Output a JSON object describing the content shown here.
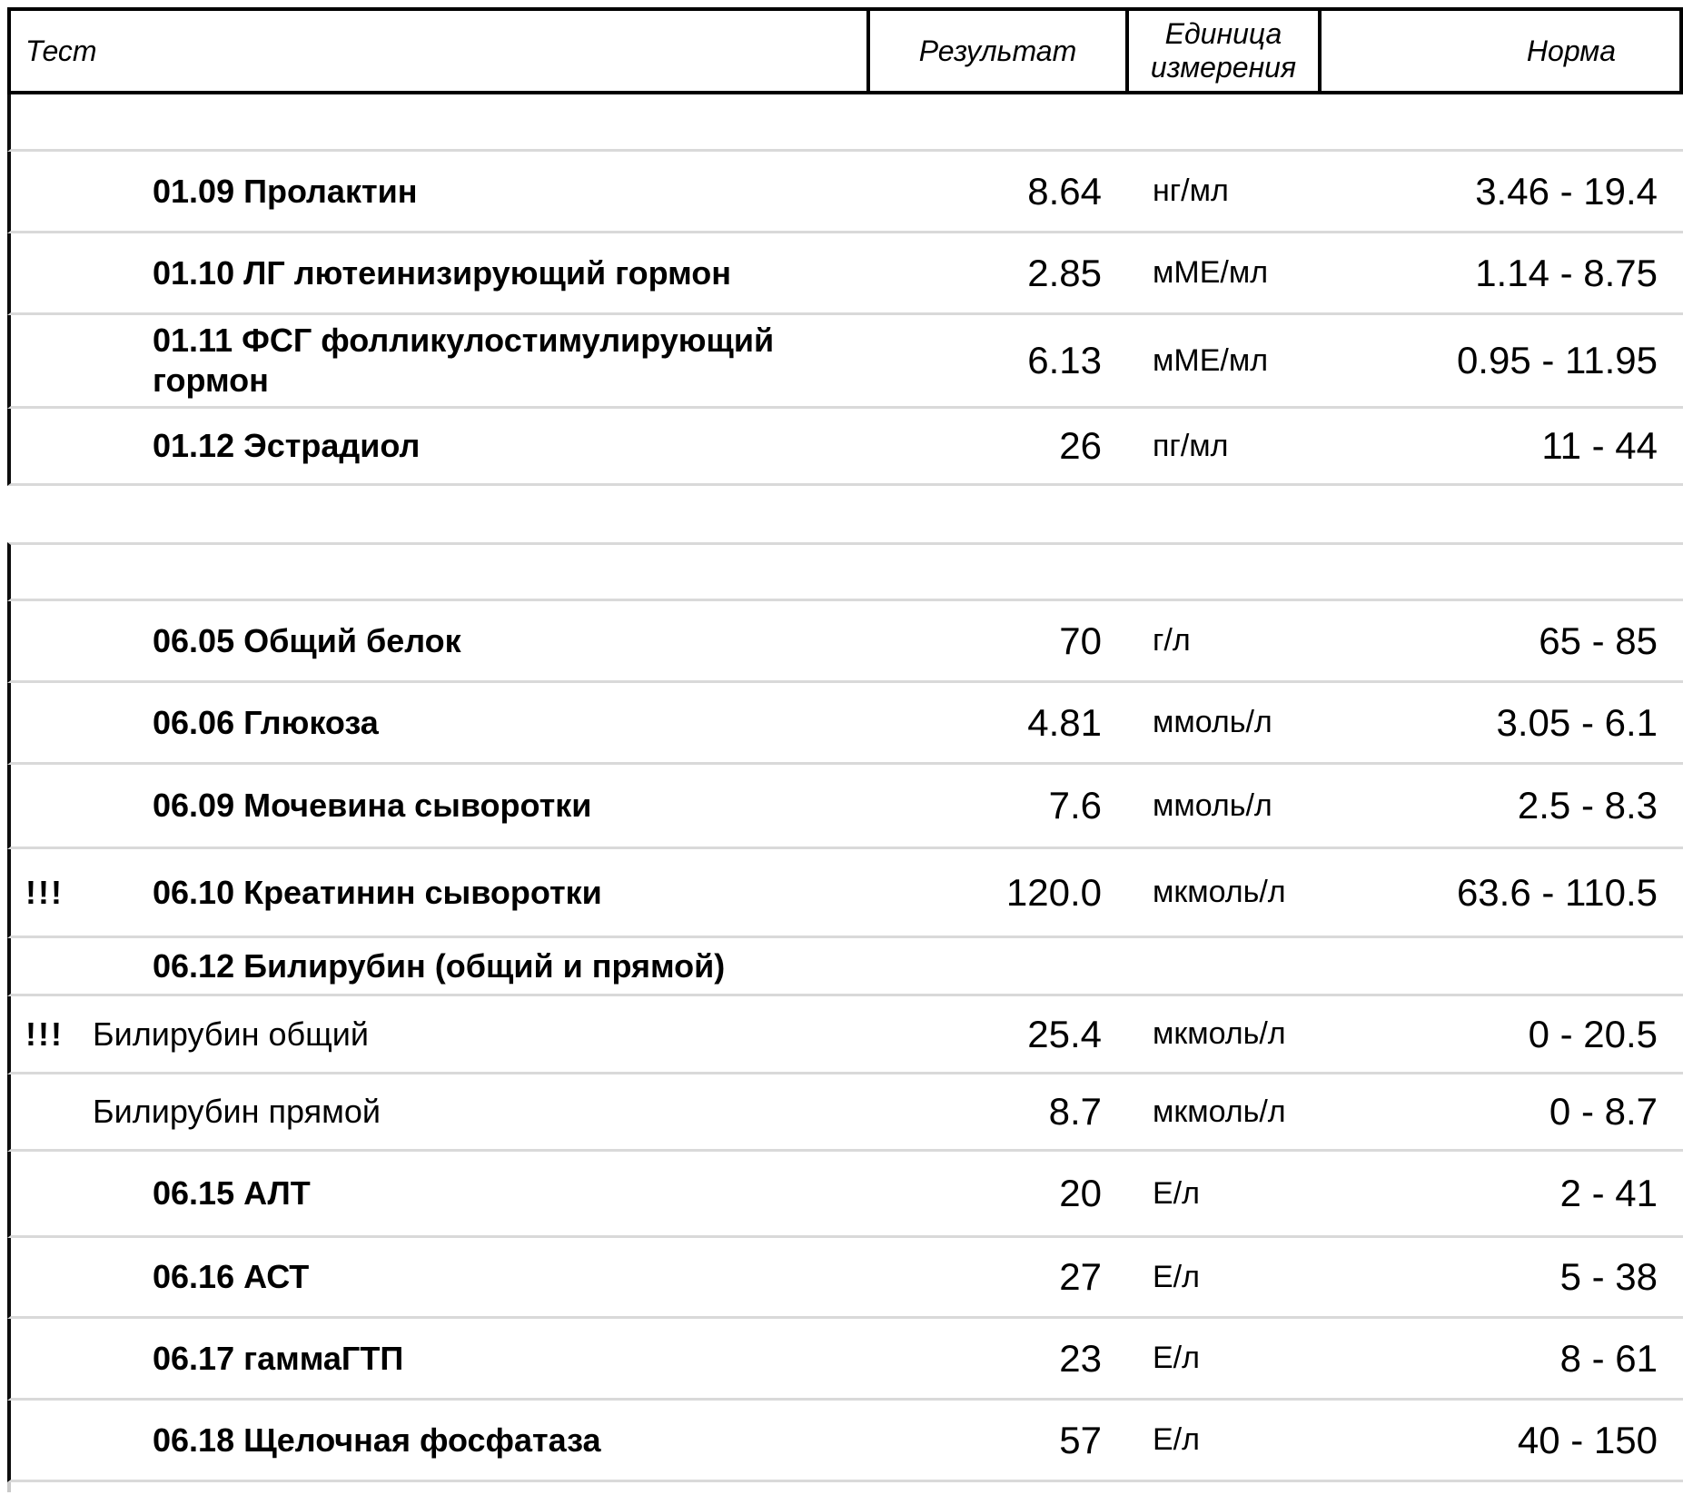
{
  "colors": {
    "background": "#ffffff",
    "text": "#000000",
    "table_border": "#000000",
    "row_separator": "#d9d9d9"
  },
  "header": {
    "test": "Тест",
    "result": "Результат",
    "unit": "Единица\nизмерения",
    "norm": "Норма"
  },
  "rows": [
    {
      "flag": "",
      "name": "01.09 Пролактин",
      "result": "8.64",
      "unit": "нг/мл",
      "norm": "3.46 - 19.4"
    },
    {
      "flag": "",
      "name": "01.10 ЛГ лютеинизирующий гормон",
      "result": "2.85",
      "unit": "мМЕ/мл",
      "norm": "1.14 - 8.75"
    },
    {
      "flag": "",
      "name": "01.11 ФСГ фолликулостимулирующий гормон",
      "result": "6.13",
      "unit": "мМЕ/мл",
      "norm": "0.95 - 11.95"
    },
    {
      "flag": "",
      "name": "01.12 Эстрадиол",
      "result": "26",
      "unit": "пг/мл",
      "norm": "11 - 44"
    },
    {
      "flag": "",
      "name": "06.05 Общий белок",
      "result": "70",
      "unit": "г/л",
      "norm": "65 - 85"
    },
    {
      "flag": "",
      "name": "06.06 Глюкоза",
      "result": "4.81",
      "unit": "ммоль/л",
      "norm": "3.05 - 6.1"
    },
    {
      "flag": "",
      "name": "06.09 Мочевина сыворотки",
      "result": "7.6",
      "unit": "ммоль/л",
      "norm": "2.5 - 8.3"
    },
    {
      "flag": "!!!",
      "name": "06.10 Креатинин сыворотки",
      "result": "120.0",
      "unit": "мкмоль/л",
      "norm": "63.6 - 110.5"
    },
    {
      "flag": "",
      "name": "06.12 Билирубин (общий и прямой)",
      "result": "",
      "unit": "",
      "norm": ""
    },
    {
      "flag": "!!!",
      "name": "Билирубин общий",
      "result": "25.4",
      "unit": "мкмоль/л",
      "norm": "0 - 20.5"
    },
    {
      "flag": "",
      "name": "Билирубин прямой",
      "result": "8.7",
      "unit": "мкмоль/л",
      "norm": "0 - 8.7"
    },
    {
      "flag": "",
      "name": "06.15 АЛТ",
      "result": "20",
      "unit": "Е/л",
      "norm": "2 - 41"
    },
    {
      "flag": "",
      "name": "06.16 АСТ",
      "result": "27",
      "unit": "Е/л",
      "norm": "5 - 38"
    },
    {
      "flag": "",
      "name": "06.17 гаммаГТП",
      "result": "23",
      "unit": "Е/л",
      "norm": "8 - 61"
    },
    {
      "flag": "",
      "name": "06.18 Щелочная фосфатаза",
      "result": "57",
      "unit": "Е/л",
      "norm": "40 - 150"
    }
  ]
}
